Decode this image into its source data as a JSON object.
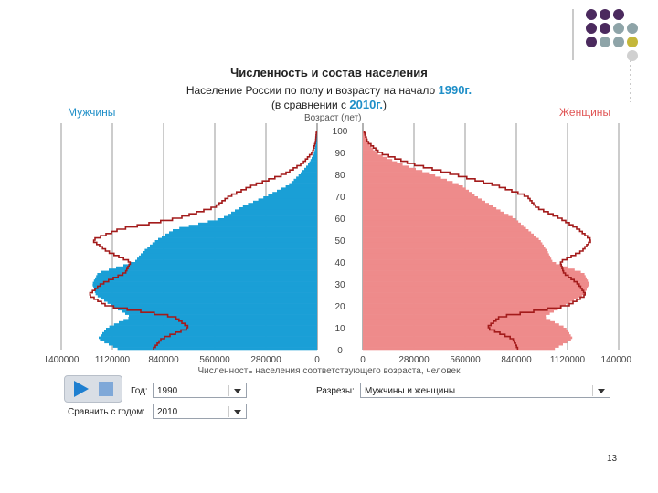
{
  "title": "Численность и состав населения",
  "subtitle_prefix": "Население России по полу и возрасту на начало",
  "subtitle_year": "1990г.",
  "compare_prefix": "(в сравнении с",
  "compare_year": "2010г.",
  "compare_suffix": ")",
  "men_label": "Мужчины",
  "women_label": "Женщины",
  "page_number": "13",
  "controls": {
    "year_label": "Год:",
    "year_value": "1990",
    "compare_label": "Сравнить с годом:",
    "compare_value": "2010",
    "sections_label": "Разрезы:",
    "sections_value": "Мужчины и женщины"
  },
  "colors": {
    "men": "#1a9fd6",
    "women": "#ee8b8b",
    "outline": "#a31b1b",
    "accent": "#1f8fc8",
    "deco_purple": "#4b2a5e",
    "deco_gray": "#8ea4a8",
    "deco_olive": "#c4b73a"
  },
  "icons": {
    "play": "play-icon",
    "stop": "stop-icon",
    "dropdown": "chevron-down-icon"
  },
  "chart_data": {
    "type": "population-pyramid",
    "title": "",
    "xlabel": "Численность населения соответствующего возраста, человек",
    "ylabel": "Возраст (лет)",
    "x_ticks_left": [
      "1400000",
      "1120000",
      "840000",
      "560000",
      "280000",
      "0"
    ],
    "x_ticks_right": [
      "0",
      "280000",
      "560000",
      "840000",
      "1120000",
      "1400000"
    ],
    "y_ticks": [
      "0",
      "10",
      "20",
      "30",
      "40",
      "50",
      "60",
      "70",
      "80",
      "90",
      "100"
    ],
    "xlim": [
      0,
      1400000
    ],
    "ylim": [
      0,
      100
    ],
    "series": [
      {
        "name": "Мужчины",
        "year": "1990",
        "style": "filled",
        "ages": [
          0,
          5,
          10,
          15,
          20,
          25,
          30,
          35,
          40,
          45,
          50,
          55,
          60,
          65,
          70,
          75,
          80,
          85,
          90,
          95,
          100
        ],
        "values": [
          1080000,
          1200000,
          1150000,
          1020000,
          1120000,
          1210000,
          1230000,
          1200000,
          1000000,
          950000,
          880000,
          780000,
          520000,
          420000,
          280000,
          160000,
          95000,
          45000,
          15000,
          6000,
          3000
        ]
      },
      {
        "name": "Женщины",
        "year": "1990",
        "style": "filled",
        "ages": [
          0,
          5,
          10,
          15,
          20,
          25,
          30,
          35,
          40,
          45,
          50,
          55,
          60,
          65,
          70,
          75,
          80,
          85,
          90,
          95,
          100
        ],
        "values": [
          1040000,
          1150000,
          1110000,
          990000,
          1100000,
          1210000,
          1240000,
          1210000,
          1040000,
          1010000,
          970000,
          900000,
          830000,
          720000,
          620000,
          540000,
          380000,
          200000,
          70000,
          25000,
          8000
        ]
      },
      {
        "name": "Мужчины",
        "year": "2010",
        "style": "outline",
        "ages": [
          0,
          5,
          10,
          15,
          20,
          25,
          30,
          35,
          40,
          45,
          50,
          55,
          60,
          65,
          70,
          75,
          80,
          85,
          90,
          95,
          100
        ],
        "values": [
          900000,
          850000,
          700000,
          780000,
          1150000,
          1250000,
          1180000,
          1050000,
          1020000,
          1150000,
          1230000,
          1080000,
          760000,
          560000,
          480000,
          350000,
          180000,
          80000,
          25000,
          8000,
          3000
        ]
      },
      {
        "name": "Женщины",
        "year": "2010",
        "style": "outline",
        "ages": [
          0,
          5,
          10,
          15,
          20,
          25,
          30,
          35,
          40,
          45,
          50,
          55,
          60,
          65,
          70,
          75,
          80,
          85,
          90,
          95,
          100
        ],
        "values": [
          850000,
          820000,
          680000,
          750000,
          1120000,
          1220000,
          1180000,
          1100000,
          1080000,
          1200000,
          1250000,
          1180000,
          1080000,
          950000,
          900000,
          730000,
          500000,
          260000,
          90000,
          25000,
          6000
        ]
      }
    ]
  }
}
